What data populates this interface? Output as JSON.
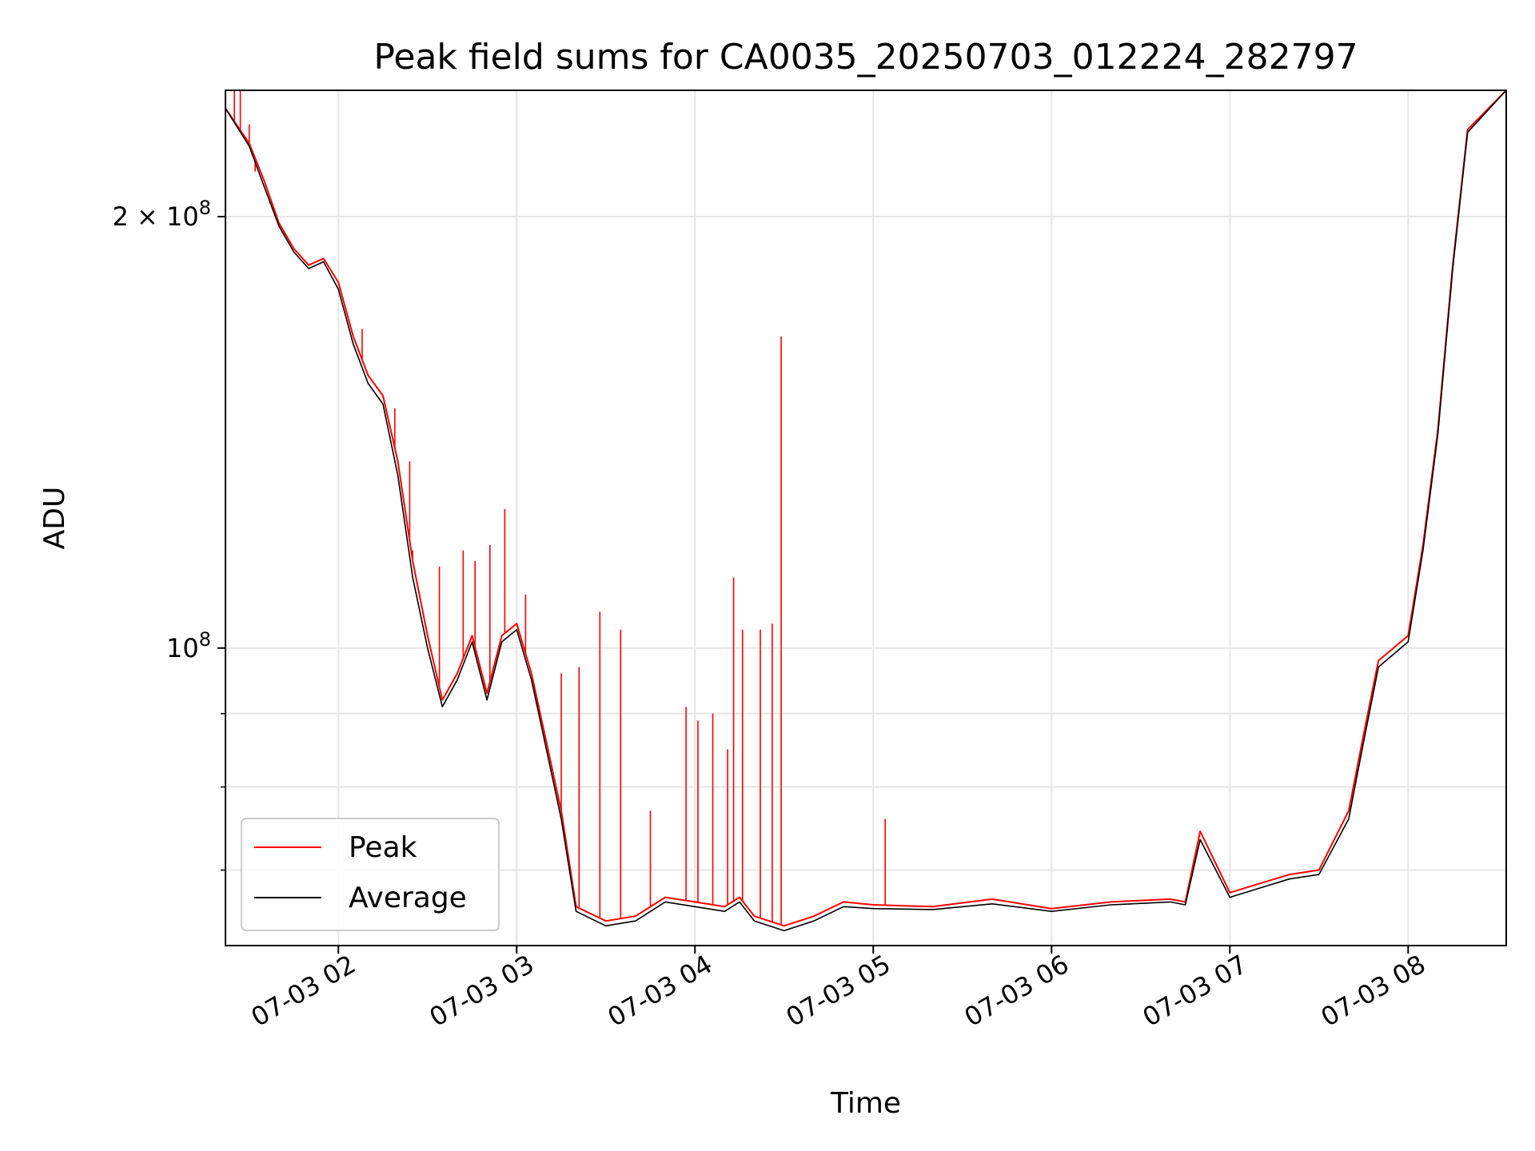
{
  "chart_data": {
    "type": "line",
    "title": "Peak field sums for CA0035_20250703_012224_282797",
    "xlabel": "Time",
    "ylabel": "ADU",
    "y_scale": "log",
    "ylim": [
      62000000,
      245000000
    ],
    "xlim": [
      "07-03 01:22",
      "07-03 08:33"
    ],
    "x_ticks": [
      "07-03 02",
      "07-03 03",
      "07-03 04",
      "07-03 05",
      "07-03 06",
      "07-03 07",
      "07-03 08"
    ],
    "y_tick_labels": [
      {
        "value": 100000000,
        "base": "10",
        "exp": "8",
        "coef": ""
      },
      {
        "value": 200000000,
        "base": "10",
        "exp": "8",
        "coef": "2 × "
      }
    ],
    "y_minor_ticks": [
      60000000,
      70000000,
      80000000,
      90000000
    ],
    "grid": true,
    "legend_position": "lower-left",
    "series": [
      {
        "name": "Peak",
        "color": "#ff0000",
        "x": [
          "07-03 01:22",
          "07-03 01:30",
          "07-03 01:35",
          "07-03 01:40",
          "07-03 01:45",
          "07-03 01:50",
          "07-03 01:55",
          "07-03 02:00",
          "07-03 02:05",
          "07-03 02:10",
          "07-03 02:15",
          "07-03 02:20",
          "07-03 02:25",
          "07-03 02:30",
          "07-03 02:35",
          "07-03 02:40",
          "07-03 02:45",
          "07-03 02:50",
          "07-03 02:55",
          "07-03 03:00",
          "07-03 03:05",
          "07-03 03:10",
          "07-03 03:15",
          "07-03 03:20",
          "07-03 03:30",
          "07-03 03:40",
          "07-03 03:50",
          "07-03 04:00",
          "07-03 04:10",
          "07-03 04:15",
          "07-03 04:20",
          "07-03 04:30",
          "07-03 04:40",
          "07-03 04:50",
          "07-03 05:00",
          "07-03 05:20",
          "07-03 05:40",
          "07-03 06:00",
          "07-03 06:20",
          "07-03 06:40",
          "07-03 06:45",
          "07-03 06:50",
          "07-03 07:00",
          "07-03 07:10",
          "07-03 07:20",
          "07-03 07:30",
          "07-03 07:40",
          "07-03 07:45",
          "07-03 07:50",
          "07-03 08:00",
          "07-03 08:05",
          "07-03 08:10",
          "07-03 08:15",
          "07-03 08:20",
          "07-03 08:33"
        ],
        "y": [
          238000000,
          225000000,
          212000000,
          198000000,
          190000000,
          185000000,
          187000000,
          180000000,
          165000000,
          155000000,
          150000000,
          135000000,
          115000000,
          102000000,
          92000000,
          96000000,
          102000000,
          93000000,
          102000000,
          104000000,
          96000000,
          86000000,
          77000000,
          66000000,
          64500000,
          65000000,
          67000000,
          66500000,
          66000000,
          67000000,
          65000000,
          64000000,
          65000000,
          66500000,
          66200000,
          66000000,
          66800000,
          65800000,
          66500000,
          66800000,
          66500000,
          74500000,
          67500000,
          68500000,
          69500000,
          70000000,
          77000000,
          87000000,
          98000000,
          102000000,
          118000000,
          142000000,
          185000000,
          230000000,
          245000000
        ],
        "spikes": [
          {
            "x": "07-03 01:25",
            "y": 245000000
          },
          {
            "x": "07-03 01:27",
            "y": 245000000
          },
          {
            "x": "07-03 01:30",
            "y": 232000000
          },
          {
            "x": "07-03 01:32",
            "y": 215000000
          },
          {
            "x": "07-03 02:08",
            "y": 167000000
          },
          {
            "x": "07-03 02:19",
            "y": 147000000
          },
          {
            "x": "07-03 02:24",
            "y": 135000000
          },
          {
            "x": "07-03 02:25",
            "y": 117000000
          },
          {
            "x": "07-03 02:34",
            "y": 114000000
          },
          {
            "x": "07-03 02:42",
            "y": 117000000
          },
          {
            "x": "07-03 02:46",
            "y": 115000000
          },
          {
            "x": "07-03 02:51",
            "y": 118000000
          },
          {
            "x": "07-03 02:56",
            "y": 125000000
          },
          {
            "x": "07-03 03:03",
            "y": 109000000
          },
          {
            "x": "07-03 03:15",
            "y": 96000000
          },
          {
            "x": "07-03 03:21",
            "y": 97000000
          },
          {
            "x": "07-03 03:28",
            "y": 106000000
          },
          {
            "x": "07-03 03:35",
            "y": 103000000
          },
          {
            "x": "07-03 03:45",
            "y": 77000000
          },
          {
            "x": "07-03 03:57",
            "y": 91000000
          },
          {
            "x": "07-03 04:01",
            "y": 89000000
          },
          {
            "x": "07-03 04:06",
            "y": 90000000
          },
          {
            "x": "07-03 04:11",
            "y": 85000000
          },
          {
            "x": "07-03 04:13",
            "y": 112000000
          },
          {
            "x": "07-03 04:16",
            "y": 103000000
          },
          {
            "x": "07-03 04:22",
            "y": 103000000
          },
          {
            "x": "07-03 04:26",
            "y": 104000000
          },
          {
            "x": "07-03 04:29",
            "y": 165000000
          },
          {
            "x": "07-03 05:04",
            "y": 76000000
          }
        ]
      },
      {
        "name": "Average",
        "color": "#000000",
        "x": [
          "07-03 01:22",
          "07-03 01:30",
          "07-03 01:35",
          "07-03 01:40",
          "07-03 01:45",
          "07-03 01:50",
          "07-03 01:55",
          "07-03 02:00",
          "07-03 02:05",
          "07-03 02:10",
          "07-03 02:15",
          "07-03 02:20",
          "07-03 02:25",
          "07-03 02:30",
          "07-03 02:35",
          "07-03 02:40",
          "07-03 02:45",
          "07-03 02:50",
          "07-03 02:55",
          "07-03 03:00",
          "07-03 03:05",
          "07-03 03:10",
          "07-03 03:15",
          "07-03 03:20",
          "07-03 03:30",
          "07-03 03:40",
          "07-03 03:50",
          "07-03 04:00",
          "07-03 04:10",
          "07-03 04:15",
          "07-03 04:20",
          "07-03 04:30",
          "07-03 04:40",
          "07-03 04:50",
          "07-03 05:00",
          "07-03 05:20",
          "07-03 05:40",
          "07-03 06:00",
          "07-03 06:20",
          "07-03 06:40",
          "07-03 06:45",
          "07-03 06:50",
          "07-03 07:00",
          "07-03 07:10",
          "07-03 07:20",
          "07-03 07:30",
          "07-03 07:40",
          "07-03 07:45",
          "07-03 07:50",
          "07-03 08:00",
          "07-03 08:05",
          "07-03 08:10",
          "07-03 08:15",
          "07-03 08:20",
          "07-03 08:33"
        ],
        "y": [
          238000000,
          224000000,
          210000000,
          197000000,
          189000000,
          184000000,
          186000000,
          178000000,
          163000000,
          153000000,
          148000000,
          132000000,
          112000000,
          100000000,
          91000000,
          95000000,
          101000000,
          92000000,
          101000000,
          103000000,
          95000000,
          85000000,
          76000000,
          65500000,
          64000000,
          64500000,
          66500000,
          66000000,
          65500000,
          66500000,
          64500000,
          63500000,
          64500000,
          66000000,
          65800000,
          65700000,
          66300000,
          65500000,
          66200000,
          66500000,
          66200000,
          73500000,
          67000000,
          68000000,
          69000000,
          69500000,
          76000000,
          86000000,
          97000000,
          101000000,
          117000000,
          141000000,
          184000000,
          229000000,
          245000000
        ]
      }
    ]
  }
}
